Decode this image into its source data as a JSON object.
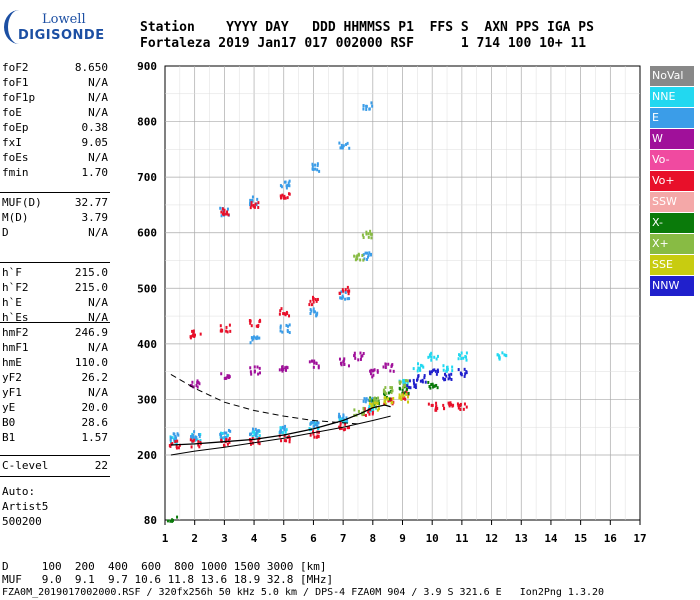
{
  "logo": {
    "line1": "Lowell",
    "line2": "DIGISONDE"
  },
  "header": {
    "row1": "Station    YYYY DAY   DDD HHMMSS P1  FFS S  AXN PPS IGA PS",
    "row2": "Fortaleza 2019 Jan17 017 002000 RSF      1 714 100 10+ 11"
  },
  "params": [
    [
      {
        "n": "foF2",
        "v": "8.650"
      },
      {
        "n": "foF1",
        "v": "N/A"
      },
      {
        "n": "foF1p",
        "v": "N/A"
      },
      {
        "n": "foE",
        "v": "N/A"
      },
      {
        "n": "foEp",
        "v": "0.38"
      },
      {
        "n": "fxI",
        "v": "9.05"
      },
      {
        "n": "foEs",
        "v": "N/A"
      },
      {
        "n": "fmin",
        "v": "1.70"
      }
    ],
    [
      {
        "n": "MUF(D)",
        "v": "32.77"
      },
      {
        "n": "M(D)",
        "v": "3.79"
      },
      {
        "n": "D",
        "v": "N/A"
      }
    ],
    [
      {
        "n": "h`F",
        "v": "215.0"
      },
      {
        "n": "h`F2",
        "v": "215.0"
      },
      {
        "n": "h`E",
        "v": "N/A"
      },
      {
        "n": "h`Es",
        "v": "N/A"
      }
    ],
    [
      {
        "n": "hmF2",
        "v": "246.9"
      },
      {
        "n": "hmF1",
        "v": "N/A"
      },
      {
        "n": "hmE",
        "v": "110.0"
      },
      {
        "n": "yF2",
        "v": "26.2"
      },
      {
        "n": "yF1",
        "v": "N/A"
      },
      {
        "n": "yE",
        "v": "20.0"
      },
      {
        "n": "B0",
        "v": "28.6"
      },
      {
        "n": "B1",
        "v": "1.57"
      }
    ],
    [
      {
        "n": "C-level",
        "v": "22"
      }
    ]
  ],
  "auto": {
    "l1": "Auto:",
    "l2": "Artist5",
    "l3": "500200"
  },
  "legend": [
    {
      "label": "NoVal",
      "color": "#888888"
    },
    {
      "label": "NNE",
      "color": "#22d8f0"
    },
    {
      "label": "E",
      "color": "#3b9de8"
    },
    {
      "label": "W",
      "color": "#a0109a"
    },
    {
      "label": "Vo-",
      "color": "#f04aa0"
    },
    {
      "label": "Vo+",
      "color": "#e8102a"
    },
    {
      "label": "SSW",
      "color": "#f4a8a8"
    },
    {
      "label": "X-",
      "color": "#0a7a0a"
    },
    {
      "label": "X+",
      "color": "#88bb44"
    },
    {
      "label": "SSE",
      "color": "#c8cc10"
    },
    {
      "label": "NNW",
      "color": "#2020cc"
    }
  ],
  "bottom": {
    "d_row": "D     100  200  400  600  800 1000 1500 3000 [km]",
    "muf_row": "MUF   9.0  9.1  9.7 10.6 11.8 13.6 18.9 32.8 [MHz]",
    "footer": "FZA0M_2019017002000.RSF / 320fx256h 50 kHz 5.0 km / DPS-4 FZA0M 904 / 3.9 S 321.6 E   Ion2Png 1.3.20"
  },
  "chart_data": {
    "type": "scatter",
    "x_ticks": [
      "1",
      "2",
      "3",
      "4",
      "5",
      "6",
      "7",
      "8",
      "9",
      "10",
      "11",
      "12",
      "13",
      "14",
      "15",
      "16",
      "17"
    ],
    "y_ticks": [
      "80",
      "200",
      "300",
      "400",
      "500",
      "600",
      "700",
      "800",
      "900"
    ],
    "xlim": [
      1,
      17
    ],
    "ylim": [
      80,
      900
    ],
    "grid": true,
    "legend_position": "right",
    "traces": [
      {
        "name": "NNE",
        "color": "#22d8f0",
        "points": [
          [
            1.3,
            230
          ],
          [
            2,
            233
          ],
          [
            3,
            236
          ],
          [
            4,
            240
          ],
          [
            5,
            245
          ],
          [
            6,
            255
          ],
          [
            7,
            268
          ],
          [
            8,
            285
          ],
          [
            9,
            330
          ],
          [
            9.5,
            360
          ],
          [
            10,
            380
          ],
          [
            10.5,
            360
          ],
          [
            11,
            380
          ],
          [
            12.3,
            380
          ]
        ]
      },
      {
        "name": "E",
        "color": "#3b9de8",
        "points": [
          [
            1.3,
            235
          ],
          [
            2,
            238
          ],
          [
            3,
            240
          ],
          [
            4,
            243
          ],
          [
            5,
            248
          ],
          [
            6,
            258
          ],
          [
            7,
            272
          ],
          [
            7.8,
            300
          ],
          [
            3,
            640
          ],
          [
            4,
            660
          ],
          [
            5,
            690
          ],
          [
            6,
            720
          ],
          [
            7,
            760
          ],
          [
            7.8,
            830
          ],
          [
            4,
            410
          ],
          [
            5,
            430
          ],
          [
            6,
            460
          ],
          [
            7,
            490
          ],
          [
            7.8,
            560
          ]
        ]
      },
      {
        "name": "W",
        "color": "#a0109a",
        "points": [
          [
            2,
            330
          ],
          [
            3,
            345
          ],
          [
            4,
            355
          ],
          [
            5,
            360
          ],
          [
            6,
            365
          ],
          [
            7,
            370
          ],
          [
            7.5,
            380
          ],
          [
            8,
            350
          ],
          [
            8.5,
            360
          ]
        ]
      },
      {
        "name": "Vo+",
        "color": "#e8102a",
        "points": [
          [
            1.3,
            222
          ],
          [
            2,
            224
          ],
          [
            3,
            226
          ],
          [
            4,
            228
          ],
          [
            5,
            232
          ],
          [
            6,
            240
          ],
          [
            7,
            255
          ],
          [
            7.8,
            280
          ],
          [
            8.5,
            300
          ],
          [
            9,
            310
          ],
          [
            10,
            290
          ],
          [
            10.5,
            290
          ],
          [
            11,
            290
          ],
          [
            2,
            420
          ],
          [
            3,
            430
          ],
          [
            4,
            440
          ],
          [
            5,
            460
          ],
          [
            6,
            480
          ],
          [
            7,
            500
          ],
          [
            3,
            640
          ],
          [
            4,
            650
          ],
          [
            5,
            670
          ]
        ]
      },
      {
        "name": "X-",
        "color": "#0a7a0a",
        "points": [
          [
            1.2,
            82
          ],
          [
            8,
            300
          ],
          [
            8.5,
            310
          ],
          [
            9,
            320
          ],
          [
            10,
            330
          ]
        ]
      },
      {
        "name": "X+",
        "color": "#88bb44",
        "points": [
          [
            7.5,
            280
          ],
          [
            8,
            300
          ],
          [
            8.5,
            320
          ],
          [
            9,
            330
          ],
          [
            7.5,
            560
          ],
          [
            7.8,
            600
          ]
        ]
      },
      {
        "name": "SSE",
        "color": "#c8cc10",
        "points": [
          [
            8,
            290
          ],
          [
            8.5,
            300
          ],
          [
            9,
            305
          ]
        ]
      },
      {
        "name": "NNW",
        "color": "#2020cc",
        "points": [
          [
            9.3,
            330
          ],
          [
            9.6,
            340
          ],
          [
            10,
            350
          ],
          [
            10.5,
            345
          ],
          [
            11,
            350
          ]
        ]
      }
    ],
    "profile_curve": [
      [
        1.2,
        200
      ],
      [
        2,
        207
      ],
      [
        3,
        214
      ],
      [
        4,
        222
      ],
      [
        5,
        230
      ],
      [
        6,
        240
      ],
      [
        7,
        250
      ],
      [
        8,
        262
      ],
      [
        8.6,
        270
      ]
    ],
    "trace_curve": [
      [
        1.2,
        218
      ],
      [
        2,
        220
      ],
      [
        3,
        224
      ],
      [
        4,
        228
      ],
      [
        5,
        236
      ],
      [
        6,
        247
      ],
      [
        7,
        262
      ],
      [
        7.6,
        275
      ],
      [
        8,
        285
      ],
      [
        8.4,
        290
      ],
      [
        8.6,
        287
      ]
    ],
    "dashed_curve": [
      [
        1.2,
        345
      ],
      [
        2,
        320
      ],
      [
        3,
        295
      ],
      [
        4,
        280
      ],
      [
        5,
        270
      ],
      [
        6,
        262
      ],
      [
        7,
        258
      ],
      [
        7.5,
        256
      ]
    ]
  }
}
